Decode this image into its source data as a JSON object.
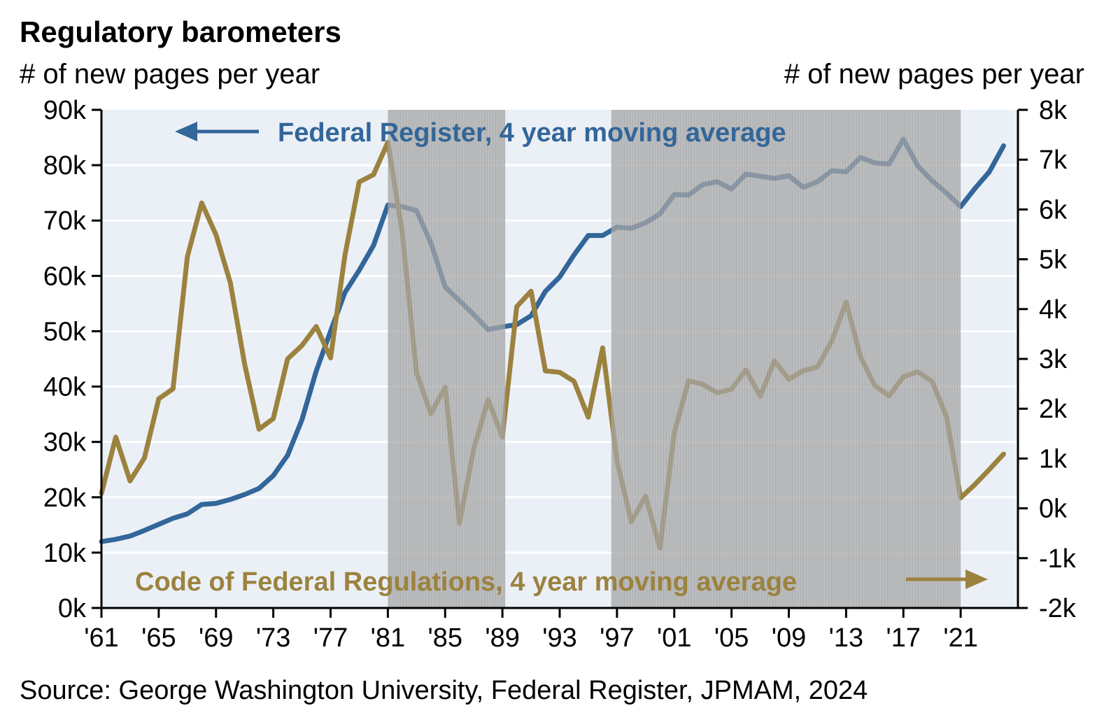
{
  "chart_data": {
    "type": "line",
    "title": "Regulatory barometers",
    "ylabel_left": "# of new pages per year",
    "ylabel_right": "# of new pages per year",
    "source": "Source: George Washington University, Federal Register, JPMAM, 2024",
    "x": [
      1961,
      1962,
      1963,
      1964,
      1965,
      1966,
      1967,
      1968,
      1969,
      1970,
      1971,
      1972,
      1973,
      1974,
      1975,
      1976,
      1977,
      1978,
      1979,
      1980,
      1981,
      1982,
      1983,
      1984,
      1985,
      1986,
      1987,
      1988,
      1989,
      1990,
      1991,
      1992,
      1993,
      1994,
      1995,
      1996,
      1997,
      1998,
      1999,
      2000,
      2001,
      2002,
      2003,
      2004,
      2005,
      2006,
      2007,
      2008,
      2009,
      2010,
      2011,
      2012,
      2013,
      2014,
      2015,
      2016,
      2017,
      2018,
      2019,
      2020,
      2021,
      2022,
      2023,
      2024
    ],
    "x_tick_values": [
      1961,
      1965,
      1969,
      1973,
      1977,
      1981,
      1985,
      1989,
      1993,
      1997,
      2001,
      2005,
      2009,
      2013,
      2017,
      2021
    ],
    "x_tick_labels": [
      "'61",
      "'65",
      "'69",
      "'73",
      "'77",
      "'81",
      "'85",
      "'89",
      "'93",
      "'97",
      "'01",
      "'05",
      "'09",
      "'13",
      "'17",
      "'21"
    ],
    "x_range": [
      1961,
      2025
    ],
    "y_left": {
      "ylim": [
        0,
        90000
      ],
      "ticks": [
        0,
        10000,
        20000,
        30000,
        40000,
        50000,
        60000,
        70000,
        80000,
        90000
      ],
      "tick_labels": [
        "0k",
        "10k",
        "20k",
        "30k",
        "40k",
        "50k",
        "60k",
        "70k",
        "80k",
        "90k"
      ]
    },
    "y_right": {
      "ylim": [
        -2000,
        8000
      ],
      "ticks": [
        -2000,
        -1000,
        0,
        1000,
        2000,
        3000,
        4000,
        5000,
        6000,
        7000,
        8000
      ],
      "tick_labels": [
        "-2k",
        "-1k",
        "0k",
        "1k",
        "2k",
        "3k",
        "4k",
        "5k",
        "6k",
        "7k",
        "8k"
      ]
    },
    "grid": true,
    "recession_shading": [
      [
        1981,
        1989.2
      ],
      [
        1996.6,
        2021
      ]
    ],
    "series": [
      {
        "name": "Federal Register, 4 year moving average",
        "axis": "left",
        "color": "#336699",
        "arrow": "left",
        "values": [
          12000,
          12400,
          13000,
          14000,
          15100,
          16200,
          17000,
          18700,
          18900,
          19600,
          20500,
          21600,
          23900,
          27600,
          34000,
          42800,
          50000,
          57000,
          61000,
          65500,
          72800,
          72500,
          71800,
          66000,
          58000,
          55500,
          53000,
          50300,
          50800,
          51200,
          52800,
          57200,
          59800,
          63800,
          67300,
          67300,
          68800,
          68600,
          69600,
          71200,
          74700,
          74600,
          76500,
          77000,
          75700,
          78400,
          78000,
          77600,
          78100,
          76000,
          77000,
          79000,
          78800,
          81400,
          80400,
          80200,
          84700,
          79900,
          77200,
          75000,
          72500,
          75800,
          78800,
          83500
        ]
      },
      {
        "name": "Code of Federal Regulations, 4 year moving average",
        "axis": "right",
        "color": "#9C823F",
        "arrow": "right",
        "values": [
          300,
          1430,
          550,
          1010,
          2200,
          2400,
          5050,
          6130,
          5490,
          4530,
          2890,
          1590,
          1800,
          3000,
          3270,
          3650,
          3020,
          5080,
          6550,
          6700,
          7350,
          5550,
          2730,
          1900,
          2430,
          -300,
          1200,
          2180,
          1430,
          4050,
          4360,
          2760,
          2730,
          2550,
          1830,
          3220,
          950,
          -270,
          240,
          -800,
          1520,
          2560,
          2490,
          2320,
          2390,
          2780,
          2250,
          2960,
          2590,
          2760,
          2840,
          3360,
          4140,
          3050,
          2460,
          2260,
          2640,
          2740,
          2550,
          1850,
          210,
          480,
          780,
          1090
        ]
      }
    ]
  }
}
